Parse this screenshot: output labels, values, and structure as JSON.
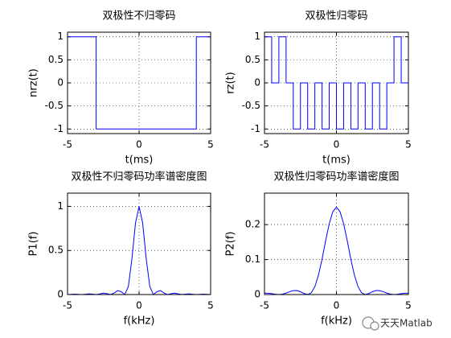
{
  "chart_data": [
    {
      "type": "line",
      "title": "双极性不归零码",
      "xlabel": "t(ms)",
      "ylabel": "nrz(t)",
      "x": [
        -5,
        -3,
        -3,
        4,
        4,
        5
      ],
      "values": [
        1,
        1,
        -1,
        -1,
        1,
        1
      ],
      "color": "#0000ff",
      "xlim": [
        -5,
        5
      ],
      "ylim": [
        -1.1,
        1.1
      ],
      "xticks": [
        -5,
        0,
        5
      ],
      "yticks": [
        -1,
        -0.5,
        0,
        0.5,
        1
      ],
      "grid": true
    },
    {
      "type": "line",
      "title": "双极性归零码",
      "xlabel": "t(ms)",
      "ylabel": "rz(t)",
      "x": [
        -5,
        -5,
        -4.5,
        -4.5,
        -4,
        -4,
        -3.5,
        -3.5,
        -3,
        -3,
        -2.5,
        -2.5,
        -2,
        -2,
        -1.5,
        -1.5,
        -1,
        -1,
        -0.5,
        -0.5,
        0,
        0,
        0.5,
        0.5,
        1,
        1,
        1.5,
        1.5,
        2,
        2,
        2.5,
        2.5,
        3,
        3,
        3.5,
        3.5,
        4,
        4,
        4.5,
        4.5,
        5
      ],
      "values": [
        0,
        1,
        1,
        0,
        0,
        1,
        1,
        0,
        0,
        -1,
        -1,
        0,
        0,
        -1,
        -1,
        0,
        0,
        -1,
        -1,
        0,
        0,
        -1,
        -1,
        0,
        0,
        -1,
        -1,
        0,
        0,
        -1,
        -1,
        0,
        0,
        -1,
        -1,
        0,
        0,
        1,
        1,
        0,
        0
      ],
      "color": "#0000ff",
      "xlim": [
        -5,
        5
      ],
      "ylim": [
        -1.1,
        1.1
      ],
      "xticks": [
        -5,
        0,
        5
      ],
      "yticks": [
        -1,
        -0.5,
        0,
        0.5,
        1
      ],
      "grid": true
    },
    {
      "type": "line",
      "title": "双极性不归零码功率谱密度图",
      "xlabel": "f(kHz)",
      "ylabel": "P1(f)",
      "x": [
        -5,
        -4.75,
        -4.5,
        -4.25,
        -4,
        -3.75,
        -3.5,
        -3.25,
        -3,
        -2.75,
        -2.5,
        -2.25,
        -2,
        -1.75,
        -1.5,
        -1.25,
        -1,
        -0.75,
        -0.5,
        -0.25,
        0,
        0.25,
        0.5,
        0.75,
        1,
        1.25,
        1.5,
        1.75,
        2,
        2.25,
        2.5,
        2.75,
        3,
        3.25,
        3.5,
        3.75,
        4,
        4.25,
        4.5,
        4.75,
        5
      ],
      "values": [
        0,
        0.0022,
        0.005,
        0.0028,
        0,
        0.0036,
        0.0083,
        0.0048,
        0,
        0.0067,
        0.0162,
        0.01,
        0,
        0.0165,
        0.045,
        0.032,
        0,
        0.09,
        0.405,
        0.81,
        1,
        0.81,
        0.405,
        0.09,
        0,
        0.032,
        0.045,
        0.0165,
        0,
        0.01,
        0.0162,
        0.0067,
        0,
        0.0048,
        0.0083,
        0.0036,
        0,
        0.0028,
        0.005,
        0.0022,
        0
      ],
      "color": "#0000ff",
      "xlim": [
        -5,
        5
      ],
      "ylim": [
        0,
        1.15
      ],
      "xticks": [
        -5,
        0,
        5
      ],
      "yticks": [
        0,
        0.5,
        1
      ],
      "grid": true
    },
    {
      "type": "line",
      "title": "双极性归零码功率谱密度图",
      "xlabel": "f(kHz)",
      "ylabel": "P2(f)",
      "x": [
        -5,
        -4.75,
        -4.5,
        -4.25,
        -4,
        -3.75,
        -3.5,
        -3.25,
        -3,
        -2.75,
        -2.5,
        -2.25,
        -2,
        -1.75,
        -1.5,
        -1.25,
        -1,
        -0.75,
        -0.5,
        -0.25,
        0,
        0.25,
        0.5,
        0.75,
        1,
        1.25,
        1.5,
        1.75,
        2,
        2.25,
        2.5,
        2.75,
        3,
        3.25,
        3.5,
        3.75,
        4,
        4.25,
        4.5,
        4.75,
        5
      ],
      "values": [
        0.0041,
        0.0038,
        0.0025,
        0.0008,
        0,
        0.0011,
        0.0041,
        0.0082,
        0.0113,
        0.0114,
        0.0081,
        0.0029,
        0,
        0.0048,
        0.0225,
        0.0554,
        0.101,
        0.154,
        0.2026,
        0.237,
        0.25,
        0.237,
        0.2026,
        0.154,
        0.101,
        0.0554,
        0.0225,
        0.0048,
        0,
        0.0029,
        0.0081,
        0.0114,
        0.0113,
        0.0082,
        0.0041,
        0.0011,
        0,
        0.0008,
        0.0025,
        0.0038,
        0.0041
      ],
      "color": "#0000ff",
      "xlim": [
        -5,
        5
      ],
      "ylim": [
        0,
        0.29
      ],
      "xticks": [
        -5,
        0,
        5
      ],
      "yticks": [
        0,
        0.1,
        0.2
      ],
      "grid": true
    }
  ],
  "watermark": "天天Matlab"
}
